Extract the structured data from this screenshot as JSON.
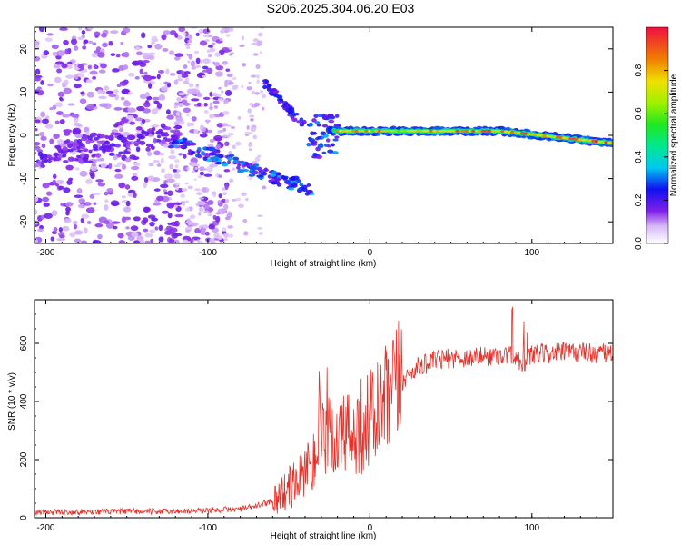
{
  "title": "S206.2025.304.06.20.E03",
  "chart_data": [
    {
      "type": "heatmap",
      "xlabel": "Height of straight line (km)",
      "ylabel": "Frequency (Hz)",
      "xlim": [
        -207,
        150
      ],
      "ylim": [
        -25,
        25
      ],
      "xticks": [
        -200,
        -100,
        0,
        100
      ],
      "yticks": [
        -20,
        -10,
        0,
        10,
        20
      ],
      "colorbar": {
        "label": "Normalized spectral amplitude",
        "range": [
          0.0,
          1.0
        ],
        "ticks": [
          0.0,
          0.2,
          0.4,
          0.6,
          0.8
        ]
      }
    },
    {
      "type": "line",
      "xlabel": "Height of straight line (km)",
      "ylabel": "SNR (10 * v/v)",
      "xlim": [
        -207,
        150
      ],
      "ylim": [
        0,
        750
      ],
      "xticks": [
        -200,
        -100,
        0,
        100
      ],
      "yticks": [
        0,
        200,
        400,
        600
      ],
      "series": [
        {
          "name": "SNR",
          "color": "#e8312a",
          "x": [
            -207,
            -180,
            -150,
            -120,
            -100,
            -90,
            -80,
            -70,
            -60,
            -50,
            -45,
            -40,
            -35,
            -30,
            -25,
            -20,
            -15,
            -10,
            -5,
            0,
            5,
            10,
            15,
            20,
            25,
            30,
            40,
            50,
            60,
            70,
            80,
            90,
            95,
            100,
            110,
            120,
            130,
            140,
            150
          ],
          "y": [
            18,
            20,
            22,
            22,
            25,
            28,
            30,
            40,
            60,
            100,
            130,
            170,
            210,
            250,
            270,
            280,
            280,
            300,
            320,
            340,
            360,
            390,
            430,
            470,
            500,
            520,
            540,
            550,
            550,
            555,
            560,
            560,
            520,
            560,
            565,
            570,
            570,
            565,
            565
          ]
        }
      ]
    }
  ]
}
